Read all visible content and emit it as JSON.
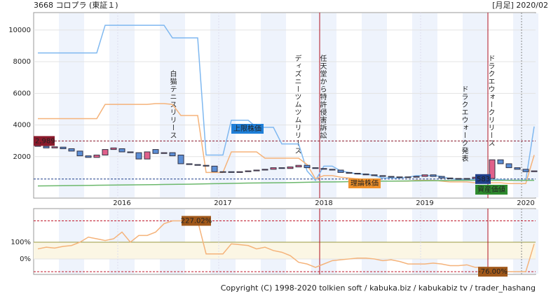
{
  "header": {
    "title": "3668 コロプラ (東証１)",
    "period": "[月足] 2020/02"
  },
  "chart_data": [
    {
      "type": "candlestick",
      "categories": [
        null,
        null,
        null,
        null,
        null,
        null,
        null,
        null,
        null,
        null,
        "2016",
        null,
        null,
        null,
        null,
        null,
        null,
        null,
        null,
        null,
        null,
        null,
        "2017",
        null,
        null,
        null,
        null,
        null,
        null,
        null,
        null,
        null,
        null,
        null,
        "2018",
        null,
        null,
        null,
        null,
        null,
        null,
        null,
        null,
        null,
        null,
        null,
        "2019",
        null,
        null,
        null,
        null,
        null,
        null,
        null,
        null,
        null,
        null,
        null,
        "2020",
        null
      ],
      "open": [
        2989,
        2650,
        2550,
        2600,
        2500,
        2350,
        2050,
        1950,
        2100,
        2450,
        2500,
        2300,
        2250,
        1850,
        2450,
        2200,
        2250,
        2100,
        1550,
        1500,
        1450,
        1400,
        1050,
        1050,
        1000,
        1050,
        1100,
        1150,
        1200,
        1300,
        1250,
        1350,
        1450,
        1300,
        1250,
        1200,
        1150,
        1000,
        950,
        900,
        850,
        800,
        750,
        700,
        720,
        700,
        750,
        850,
        750,
        650,
        620,
        600,
        620,
        700,
        620,
        1800,
        1550,
        1300,
        1200,
        1050
      ],
      "close": [
        2650,
        2550,
        2620,
        2500,
        2350,
        2050,
        1950,
        2100,
        2450,
        2550,
        2300,
        2250,
        1850,
        2300,
        2200,
        2250,
        2050,
        1550,
        1500,
        1450,
        1400,
        1050,
        1050,
        1000,
        1050,
        1100,
        1150,
        1200,
        1300,
        1250,
        1350,
        1450,
        1300,
        1250,
        1200,
        1150,
        1000,
        950,
        900,
        850,
        800,
        750,
        700,
        720,
        700,
        750,
        850,
        750,
        650,
        620,
        600,
        620,
        700,
        850,
        1800,
        1550,
        1300,
        1200,
        1050,
        1100
      ],
      "up_color": "#e0608a",
      "down_color": "#5b8ed6",
      "series": [
        {
          "name": "上限株価",
          "color": "#7fb8f0",
          "label_color": "#1f7fd8",
          "values": [
            8550,
            8550,
            8550,
            8550,
            8550,
            8550,
            8550,
            8550,
            10300,
            10300,
            10300,
            10300,
            10300,
            10300,
            10300,
            10300,
            9500,
            9500,
            9500,
            9500,
            2100,
            2100,
            2100,
            4300,
            4300,
            4300,
            3850,
            3850,
            3850,
            2800,
            2800,
            2800,
            1100,
            500,
            1400,
            1400,
            1100,
            1000,
            900,
            900,
            800,
            650,
            650,
            650,
            700,
            800,
            800,
            800,
            750,
            600,
            550,
            550,
            550,
            550,
            550,
            550,
            500,
            500,
            500,
            3900
          ]
        },
        {
          "name": "理論株価",
          "color": "#f5b37a",
          "label_color": "#f0922c",
          "values": [
            4400,
            4400,
            4400,
            4400,
            4400,
            4400,
            4400,
            4400,
            5300,
            5300,
            5300,
            5300,
            5300,
            5300,
            5350,
            5350,
            5300,
            4600,
            4600,
            4600,
            1000,
            1000,
            1000,
            2300,
            2300,
            2300,
            2300,
            1900,
            1900,
            1900,
            1900,
            1900,
            1500,
            600,
            800,
            800,
            700,
            650,
            600,
            550,
            500,
            450,
            450,
            450,
            450,
            500,
            500,
            500,
            450,
            400,
            400,
            400,
            350,
            350,
            350,
            350,
            300,
            300,
            300,
            2100
          ]
        },
        {
          "name": "資産価値",
          "color": "#6cb86c",
          "label_color": "#2e8b2e",
          "values": [
            150,
            155,
            160,
            165,
            170,
            175,
            180,
            190,
            200,
            205,
            210,
            215,
            220,
            225,
            230,
            240,
            250,
            255,
            260,
            270,
            280,
            290,
            300,
            310,
            320,
            330,
            335,
            340,
            350,
            355,
            360,
            370,
            380,
            390,
            400,
            405,
            410,
            420,
            430,
            435,
            440,
            450,
            455,
            460,
            465,
            470,
            475,
            480,
            485,
            490,
            495,
            500,
            500,
            500,
            500,
            500,
            500,
            500,
            500,
            500
          ]
        }
      ],
      "ylim": [
        -620,
        11100
      ],
      "yticks": [
        {
          "value": 2000,
          "label": "2000"
        },
        {
          "value": 4000,
          "label": "4000"
        },
        {
          "value": 6000,
          "label": "6000"
        },
        {
          "value": 8000,
          "label": "8000"
        },
        {
          "value": 10000,
          "label": "10000"
        }
      ],
      "reference_lines": [
        {
          "value": 2989,
          "label": "2,989",
          "color": "#8b1a2b"
        },
        {
          "value": 583,
          "label": "583",
          "color": "#1f3f8a"
        }
      ],
      "annotations": [
        {
          "text": "白猫テニスリリース",
          "color": "#333"
        },
        {
          "text": "ディズニーツムツムリリース",
          "color": "#333"
        },
        {
          "text": "任天堂から特許侵害訴訟",
          "color": "#c0182a"
        },
        {
          "text": "ドラクエウォーク発表",
          "color": "#333"
        },
        {
          "text": "ドラクエウォークリリース",
          "color": "#c0182a"
        }
      ]
    },
    {
      "type": "line",
      "values": [
        60,
        70,
        65,
        75,
        80,
        100,
        130,
        120,
        110,
        120,
        160,
        100,
        140,
        140,
        160,
        210,
        227.02,
        227.02,
        227.02,
        227.02,
        30,
        30,
        30,
        90,
        85,
        80,
        60,
        70,
        50,
        40,
        20,
        -20,
        -30,
        -50,
        -30,
        -10,
        -5,
        0,
        5,
        5,
        0,
        -10,
        -5,
        -15,
        -30,
        -30,
        -30,
        -25,
        -30,
        -40,
        -40,
        -35,
        -50,
        -50,
        -60,
        -70,
        -76,
        -76,
        -76,
        90
      ],
      "color": "#f5b37a",
      "ylim": [
        -92,
        300
      ],
      "yticks": [
        {
          "value": 0,
          "label": "0%"
        },
        {
          "value": 100,
          "label": "100%"
        }
      ],
      "reference_lines": [
        {
          "value": 227.02,
          "label": "227.02%",
          "color": "#c0182a"
        },
        {
          "value": -76,
          "label": "-76.00%",
          "color": "#c0182a"
        }
      ]
    }
  ],
  "footer": "Copyright (C) 1998-2020 tolkien soft / kabuka.biz / kabukabiz tv / trader_hashang"
}
